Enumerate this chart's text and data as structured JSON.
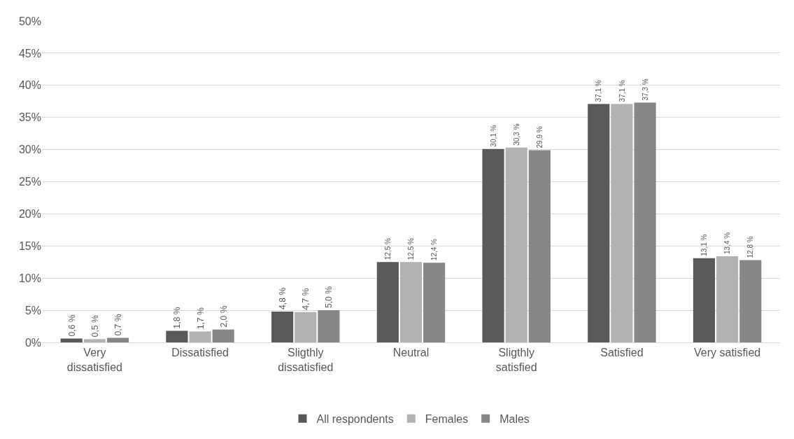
{
  "chart_data": {
    "type": "bar",
    "categories": [
      "Very\ndissatisfied",
      "Dissatisfied",
      "Sligthly\ndissatisfied",
      "Neutral",
      "Sligthly\nsatisfied",
      "Satisfied",
      "Very satisfied"
    ],
    "series": [
      {
        "name": "All respondents",
        "color": "#595959",
        "values": [
          0.6,
          1.8,
          4.8,
          12.5,
          30.1,
          37.1,
          13.1
        ],
        "value_labels": [
          "0,6 %",
          "1,8 %",
          "4,8 %",
          "12,5 %",
          "30,1 %",
          "37,1 %",
          "13,1 %"
        ]
      },
      {
        "name": "Females",
        "color": "#b2b2b2",
        "values": [
          0.5,
          1.7,
          4.7,
          12.5,
          30.3,
          37.1,
          13.4
        ],
        "value_labels": [
          "0,5 %",
          "1,7 %",
          "4,7 %",
          "12,5 %",
          "30,3 %",
          "37,1 %",
          "13,4 %"
        ]
      },
      {
        "name": "Males",
        "color": "#878787",
        "values": [
          0.7,
          2.0,
          5.0,
          12.4,
          29.9,
          37.3,
          12.8
        ],
        "value_labels": [
          "0,7 %",
          "2,0 %",
          "5,0 %",
          "12,4 %",
          "29,9 %",
          "37,3 %",
          "12,8 %"
        ]
      }
    ],
    "ylim": [
      0,
      50
    ],
    "yticks": [
      {
        "value": 0,
        "label": "0%"
      },
      {
        "value": 5,
        "label": "5%"
      },
      {
        "value": 10,
        "label": "10%"
      },
      {
        "value": 15,
        "label": "15%"
      },
      {
        "value": 20,
        "label": "20%"
      },
      {
        "value": 25,
        "label": "25%"
      },
      {
        "value": 30,
        "label": "30%"
      },
      {
        "value": 35,
        "label": "35%"
      },
      {
        "value": 40,
        "label": "40%"
      },
      {
        "value": 45,
        "label": "45%"
      },
      {
        "value": 50,
        "label": "50%"
      }
    ],
    "grid": "y",
    "legend": "bottom"
  }
}
